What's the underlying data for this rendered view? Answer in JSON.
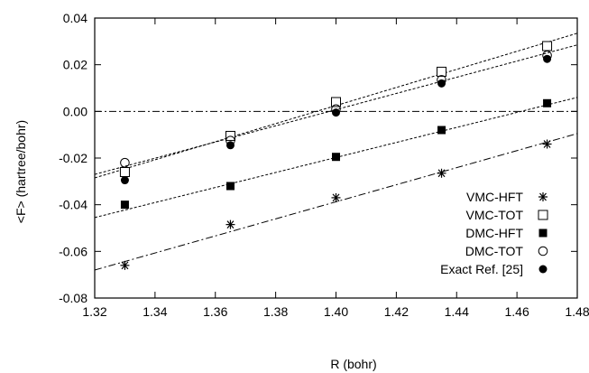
{
  "chart_data": {
    "type": "scatter",
    "xlabel": "R (bohr)",
    "ylabel": "<F> (hartree/bohr)",
    "xlim": [
      1.32,
      1.48
    ],
    "ylim": [
      -0.08,
      0.04
    ],
    "x_ticks": [
      "1.32",
      "1.34",
      "1.36",
      "1.38",
      "1.40",
      "1.42",
      "1.44",
      "1.46",
      "1.48"
    ],
    "y_ticks": [
      "-0.08",
      "-0.06",
      "-0.04",
      "-0.02",
      "0.00",
      "0.02",
      "0.04"
    ],
    "grid": false,
    "legend_position": "bottom-right",
    "zero_line": true,
    "series": [
      {
        "name": "VMC-HFT",
        "marker": "star",
        "x": [
          1.33,
          1.365,
          1.4,
          1.435,
          1.47
        ],
        "y": [
          -0.066,
          -0.0485,
          -0.037,
          -0.0265,
          -0.014
        ],
        "fit": [
          [
            1.32,
            -0.068
          ],
          [
            1.48,
            -0.0095
          ]
        ]
      },
      {
        "name": "VMC-TOT",
        "marker": "open-square",
        "x": [
          1.33,
          1.365,
          1.4,
          1.435,
          1.47
        ],
        "y": [
          -0.026,
          -0.0105,
          0.004,
          0.017,
          0.028
        ],
        "fit": [
          [
            1.32,
            -0.0285
          ],
          [
            1.48,
            0.0335
          ]
        ]
      },
      {
        "name": "DMC-HFT",
        "marker": "filled-square",
        "x": [
          1.33,
          1.365,
          1.4,
          1.435,
          1.47
        ],
        "y": [
          -0.04,
          -0.032,
          -0.0195,
          -0.008,
          0.0035
        ],
        "fit": [
          [
            1.32,
            -0.0455
          ],
          [
            1.48,
            0.006
          ]
        ]
      },
      {
        "name": "DMC-TOT",
        "marker": "open-circle",
        "x": [
          1.33,
          1.365,
          1.4,
          1.435,
          1.47
        ],
        "y": [
          -0.022,
          -0.0125,
          0.001,
          0.0135,
          0.024
        ],
        "fit": [
          [
            1.32,
            -0.027
          ],
          [
            1.48,
            0.0285
          ]
        ]
      },
      {
        "name": "Exact Ref. [25]",
        "marker": "filled-circle",
        "x": [
          1.33,
          1.365,
          1.4,
          1.435,
          1.47
        ],
        "y": [
          -0.0295,
          -0.0145,
          -0.0005,
          0.012,
          0.0225
        ]
      }
    ]
  }
}
